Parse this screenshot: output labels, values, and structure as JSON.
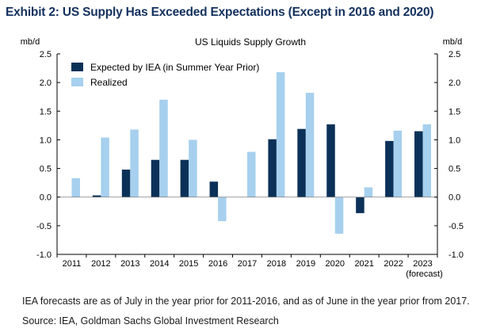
{
  "exhibit_title": "Exhibit 2: US Supply Has Exceeded Expectations (Except in 2016 and 2020)",
  "footnote": "IEA forecasts are as of July in the year prior for 2011-2016, and as of June in the year prior from 2017.",
  "source": "Source: IEA, Goldman Sachs Global Investment Research",
  "colors": {
    "expected": "#0b3158",
    "realized": "#a6d0ee",
    "axis": "#000000",
    "zero_line": "#808080"
  },
  "chart_data": {
    "type": "bar",
    "title": "US Liquids Supply Growth",
    "ylabel_left": "mb/d",
    "ylabel_right": "mb/d",
    "categories": [
      "2011",
      "2012",
      "2013",
      "2014",
      "2015",
      "2016",
      "2017",
      "2018",
      "2019",
      "2020",
      "2021",
      "2022",
      "2023"
    ],
    "category_sublabel": {
      "index": 12,
      "text": "(forecast)"
    },
    "yticks": [
      "2.5",
      "2.0",
      "1.5",
      "1.0",
      "0.5",
      "0.0",
      "-0.5",
      "-1.0"
    ],
    "ylim": [
      -1.0,
      2.5
    ],
    "grid": false,
    "legend_position": "top-left",
    "series": [
      {
        "name": "Expected by IEA (in Summer Year Prior)",
        "values": [
          0.0,
          0.03,
          0.48,
          0.65,
          0.65,
          0.27,
          0.0,
          1.01,
          1.19,
          1.27,
          -0.28,
          0.98,
          1.15
        ]
      },
      {
        "name": "Realized",
        "values": [
          0.33,
          1.04,
          1.18,
          1.7,
          1.0,
          -0.42,
          0.79,
          2.18,
          1.82,
          -0.64,
          0.17,
          1.16,
          1.27
        ]
      }
    ]
  }
}
